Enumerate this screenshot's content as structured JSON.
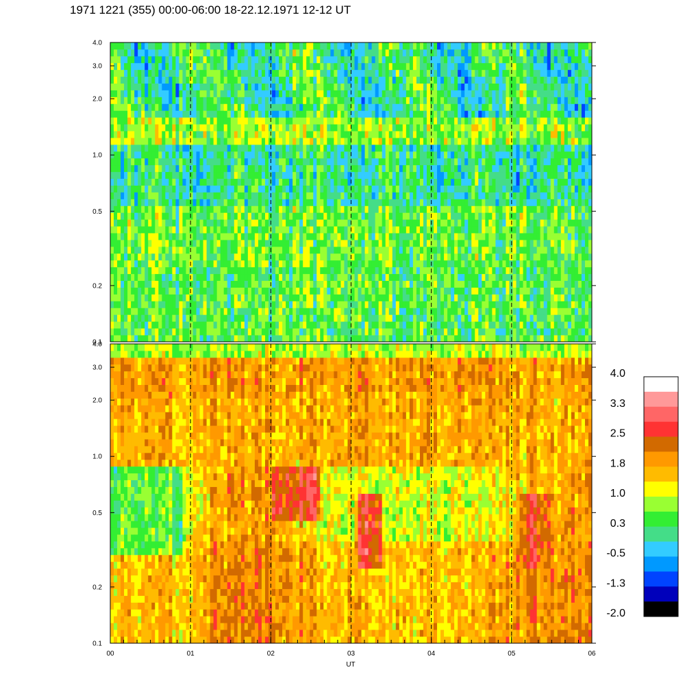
{
  "title": "1971 1221 (355) 00:00-06:00 18-22.12.1971  12-12 UT",
  "chart_data": {
    "type": "heatmap",
    "xlabel": "UT",
    "x_ticks": [
      "00",
      "01",
      "02",
      "03",
      "04",
      "05",
      "06"
    ],
    "xlim": [
      0,
      6
    ],
    "y_scale": "log",
    "ylim": [
      0.1,
      4.0
    ],
    "panels": [
      {
        "name": "",
        "y_ticks": [
          "4.0",
          "3.0",
          "2.0",
          "1.0",
          "0.5",
          "0.2",
          "0.1"
        ],
        "y_values": [
          4.0,
          3.0,
          2.0,
          1.0,
          0.5,
          0.2,
          0.1
        ],
        "dominant_levels": "green-cyan, -0.5 to 1.0"
      },
      {
        "name": "",
        "y_ticks": [
          "4.0",
          "3.0",
          "2.0",
          "1.0",
          "0.5",
          "0.2",
          "0.1"
        ],
        "y_values": [
          4.0,
          3.0,
          2.0,
          1.0,
          0.5,
          0.2,
          0.1
        ],
        "dominant_levels": "yellow-orange-red, 1.0 to 2.5"
      }
    ],
    "grid": "dashed vertical lines at each hour",
    "colorbar": {
      "labels": [
        "4.0",
        "3.3",
        "2.5",
        "1.8",
        "1.0",
        "0.3",
        "-0.5",
        "-1.3",
        "-2.0"
      ],
      "colors_top_to_bottom": [
        "#ffffff",
        "#ff9999",
        "#ff6666",
        "#ff3333",
        "#d26a00",
        "#ff9900",
        "#ffbb00",
        "#ffff00",
        "#99ff33",
        "#33ee33",
        "#44dd88",
        "#33ccff",
        "#0099ff",
        "#0044ff",
        "#0000bb",
        "#000000"
      ]
    }
  }
}
